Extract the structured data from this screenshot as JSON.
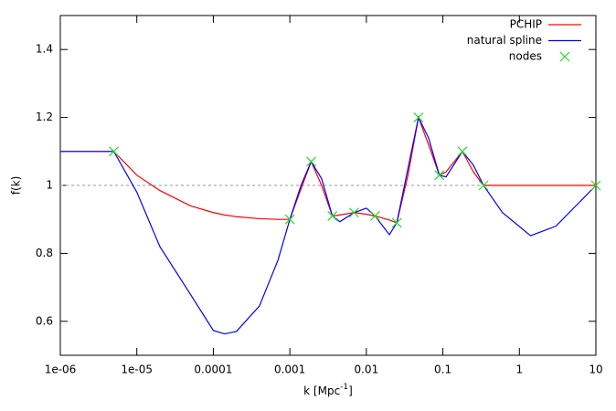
{
  "chart_data": {
    "type": "line",
    "x_label": [
      "k [Mpc",
      "-1",
      "]"
    ],
    "y_label": "f(k)",
    "xscale": "log",
    "xlim": [
      1e-06,
      10
    ],
    "ylim": [
      0.5,
      1.5
    ],
    "xticks": [
      {
        "value": 1e-06,
        "label": "1e-06"
      },
      {
        "value": 1e-05,
        "label": "1e-05"
      },
      0.0001,
      0.001,
      0.01,
      0.1,
      1,
      10
    ],
    "yticks": [
      0.6,
      0.8,
      1,
      1.2,
      1.4
    ],
    "reference_line": 1,
    "legend": "top right",
    "series": [
      {
        "name": "PCHIP",
        "color": "#ff0000",
        "style": "line",
        "x": [
          1e-06,
          5e-06,
          1e-05,
          2e-05,
          5e-05,
          0.0001,
          0.00014,
          0.0002,
          0.0004,
          0.0007,
          0.001,
          0.0014,
          0.0019,
          0.0026,
          0.0036,
          0.0045,
          0.0069,
          0.01,
          0.013,
          0.02,
          0.025,
          0.035,
          0.048,
          0.065,
          0.09,
          0.11,
          0.18,
          0.25,
          0.34,
          0.6,
          1.4,
          3,
          10
        ],
        "values": [
          1.1,
          1.1,
          1.03,
          0.985,
          0.94,
          0.92,
          0.913,
          0.908,
          0.902,
          0.9,
          0.9,
          0.99,
          1.07,
          1.0,
          0.91,
          0.913,
          0.92,
          0.915,
          0.91,
          0.898,
          0.89,
          1.03,
          1.2,
          1.12,
          1.03,
          1.04,
          1.1,
          1.04,
          1.0,
          1.0,
          1.0,
          1.0,
          1.0
        ]
      },
      {
        "name": "natural spline",
        "color": "#0000ff",
        "style": "line",
        "x": [
          1e-06,
          5e-06,
          1e-05,
          2e-05,
          5e-05,
          0.0001,
          0.00014,
          0.0002,
          0.0004,
          0.0007,
          0.001,
          0.0014,
          0.0019,
          0.0026,
          0.0036,
          0.0045,
          0.0069,
          0.01,
          0.013,
          0.02,
          0.025,
          0.035,
          0.048,
          0.065,
          0.09,
          0.11,
          0.18,
          0.25,
          0.34,
          0.6,
          1.4,
          3,
          10
        ],
        "values": [
          1.1,
          1.1,
          0.98,
          0.82,
          0.68,
          0.573,
          0.563,
          0.57,
          0.645,
          0.78,
          0.9,
          1.0,
          1.07,
          1.02,
          0.91,
          0.893,
          0.92,
          0.933,
          0.91,
          0.855,
          0.89,
          1.05,
          1.2,
          1.14,
          1.03,
          1.025,
          1.1,
          1.06,
          1.0,
          0.92,
          0.852,
          0.88,
          1.0
        ]
      },
      {
        "name": "nodes",
        "color": "#22dd22",
        "style": "points",
        "x": [
          5e-06,
          0.001,
          0.0019,
          0.0036,
          0.0069,
          0.013,
          0.025,
          0.048,
          0.09,
          0.18,
          0.34,
          10
        ],
        "values": [
          1.1,
          0.9,
          1.07,
          0.91,
          0.92,
          0.91,
          0.89,
          1.2,
          1.03,
          1.1,
          1.0,
          1.0
        ]
      }
    ]
  }
}
